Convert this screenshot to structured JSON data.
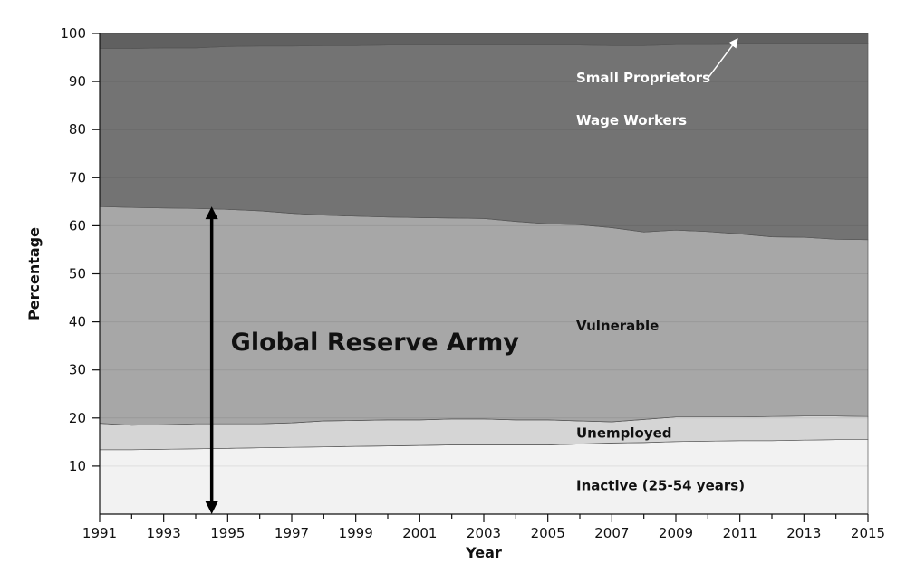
{
  "chart_data": {
    "type": "area",
    "stacked": true,
    "xlabel": "Year",
    "ylabel": "Percentage",
    "xlim": [
      1991,
      2015
    ],
    "ylim": [
      0,
      100
    ],
    "x_ticks": [
      "1991",
      "1993",
      "1995",
      "1997",
      "1999",
      "2001",
      "2003",
      "2005",
      "2007",
      "2009",
      "2011",
      "2013",
      "2015"
    ],
    "y_ticks": [
      "10",
      "20",
      "30",
      "40",
      "50",
      "60",
      "70",
      "80",
      "90",
      "100"
    ],
    "grid": "horizontal",
    "x": [
      1991,
      1992,
      1993,
      1994,
      1995,
      1996,
      1997,
      1998,
      1999,
      2000,
      2001,
      2002,
      2003,
      2004,
      2005,
      2006,
      2007,
      2008,
      2009,
      2010,
      2011,
      2012,
      2013,
      2014,
      2015
    ],
    "series": [
      {
        "name": "Inactive (25-54 years)",
        "color": "#f2f2f2",
        "values": [
          13.4,
          13.4,
          13.5,
          13.6,
          13.7,
          13.8,
          13.9,
          14.0,
          14.1,
          14.2,
          14.3,
          14.4,
          14.4,
          14.4,
          14.4,
          14.6,
          14.8,
          14.9,
          15.1,
          15.2,
          15.3,
          15.3,
          15.4,
          15.5,
          15.5
        ]
      },
      {
        "name": "Unemployed",
        "color": "#d5d5d5",
        "values": [
          5.5,
          5.1,
          5.1,
          5.2,
          5.1,
          5.0,
          5.1,
          5.4,
          5.4,
          5.4,
          5.3,
          5.4,
          5.4,
          5.2,
          5.2,
          4.8,
          4.4,
          4.8,
          5.1,
          5.0,
          4.9,
          5.0,
          5.0,
          4.9,
          4.8
        ]
      },
      {
        "name": "Vulnerable",
        "color": "#a7a7a7",
        "values": [
          45.1,
          45.3,
          45.1,
          44.8,
          44.6,
          44.3,
          43.6,
          42.8,
          42.5,
          42.2,
          42.1,
          41.8,
          41.7,
          41.3,
          40.8,
          40.8,
          40.4,
          39.0,
          38.9,
          38.6,
          38.1,
          37.4,
          37.2,
          36.8,
          36.8
        ]
      },
      {
        "name": "Wage Workers",
        "color": "#737373",
        "values": [
          32.9,
          33.1,
          33.3,
          33.4,
          33.9,
          34.3,
          34.8,
          35.3,
          35.5,
          35.8,
          35.9,
          36.0,
          36.1,
          36.7,
          37.2,
          37.4,
          37.9,
          38.8,
          38.6,
          38.9,
          39.5,
          40.1,
          40.2,
          40.6,
          40.7
        ]
      },
      {
        "name": "Small Proprietors",
        "color": "#606060",
        "values": [
          3.1,
          3.1,
          3.0,
          3.0,
          2.7,
          2.6,
          2.6,
          2.5,
          2.5,
          2.4,
          2.4,
          2.4,
          2.4,
          2.4,
          2.4,
          2.4,
          2.5,
          2.5,
          2.3,
          2.3,
          2.2,
          2.2,
          2.2,
          2.2,
          2.2
        ]
      }
    ],
    "annotations": [
      {
        "text": "Global Reserve Army",
        "type": "double-arrow",
        "x": 1994.5,
        "y_from": 0,
        "y_to": 64
      }
    ]
  }
}
